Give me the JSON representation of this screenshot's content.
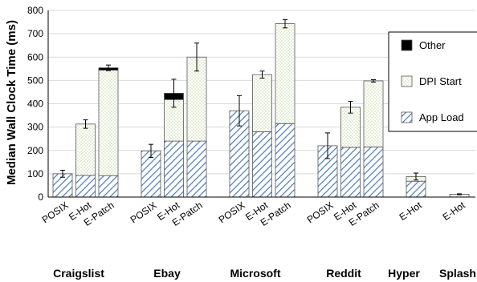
{
  "chart_data": {
    "type": "bar",
    "stacked": true,
    "ylabel": "Median Wall Clock Time (ms)",
    "ylim": [
      0,
      800
    ],
    "yticks": [
      0,
      100,
      200,
      300,
      400,
      500,
      600,
      700,
      800
    ],
    "grid": true,
    "legend_position": "right",
    "series": [
      {
        "name": "App Load",
        "pattern": "diagonal-hatch",
        "color": "#4a7ab8"
      },
      {
        "name": "DPI Start",
        "pattern": "dotted",
        "color": "#a8c878"
      },
      {
        "name": "Other",
        "pattern": "solid",
        "color": "#000000"
      }
    ],
    "groups": [
      {
        "name": "Craigslist",
        "bars": [
          {
            "label": "POSIX",
            "app_load": 100,
            "dpi_start": 0,
            "other": 0,
            "total": 100,
            "error": 15
          },
          {
            "label": "E-Hot",
            "app_load": 93,
            "dpi_start": 220,
            "other": 0,
            "total": 313,
            "error": 18
          },
          {
            "label": "E-Patch",
            "app_load": 92,
            "dpi_start": 452,
            "other": 10,
            "total": 554,
            "error": 12
          }
        ]
      },
      {
        "name": "Ebay",
        "bars": [
          {
            "label": "POSIX",
            "app_load": 198,
            "dpi_start": 0,
            "other": 0,
            "total": 198,
            "error": 28
          },
          {
            "label": "E-Hot",
            "app_load": 240,
            "dpi_start": 178,
            "other": 27,
            "total": 445,
            "error": 60
          },
          {
            "label": "E-Patch",
            "app_load": 240,
            "dpi_start": 360,
            "other": 0,
            "total": 600,
            "error": 60
          }
        ]
      },
      {
        "name": "Microsoft",
        "bars": [
          {
            "label": "POSIX",
            "app_load": 370,
            "dpi_start": 0,
            "other": 0,
            "total": 370,
            "error": 65
          },
          {
            "label": "E-Hot",
            "app_load": 280,
            "dpi_start": 245,
            "other": 0,
            "total": 525,
            "error": 15
          },
          {
            "label": "E-Patch",
            "app_load": 315,
            "dpi_start": 428,
            "other": 0,
            "total": 743,
            "error": 18
          }
        ]
      },
      {
        "name": "Reddit",
        "bars": [
          {
            "label": "POSIX",
            "app_load": 220,
            "dpi_start": 0,
            "other": 0,
            "total": 220,
            "error": 55
          },
          {
            "label": "E-Hot",
            "app_load": 213,
            "dpi_start": 172,
            "other": 0,
            "total": 385,
            "error": 25
          },
          {
            "label": "E-Patch",
            "app_load": 215,
            "dpi_start": 283,
            "other": 0,
            "total": 498,
            "error": 5
          }
        ]
      },
      {
        "name": "Hyper",
        "bars": [
          {
            "label": "E-Hot",
            "app_load": 68,
            "dpi_start": 20,
            "other": 0,
            "total": 88,
            "error": 15
          }
        ]
      },
      {
        "name": "Splash",
        "bars": [
          {
            "label": "E-Hot",
            "app_load": 0,
            "dpi_start": 12,
            "other": 0,
            "total": 12,
            "error": 2
          }
        ]
      }
    ]
  }
}
